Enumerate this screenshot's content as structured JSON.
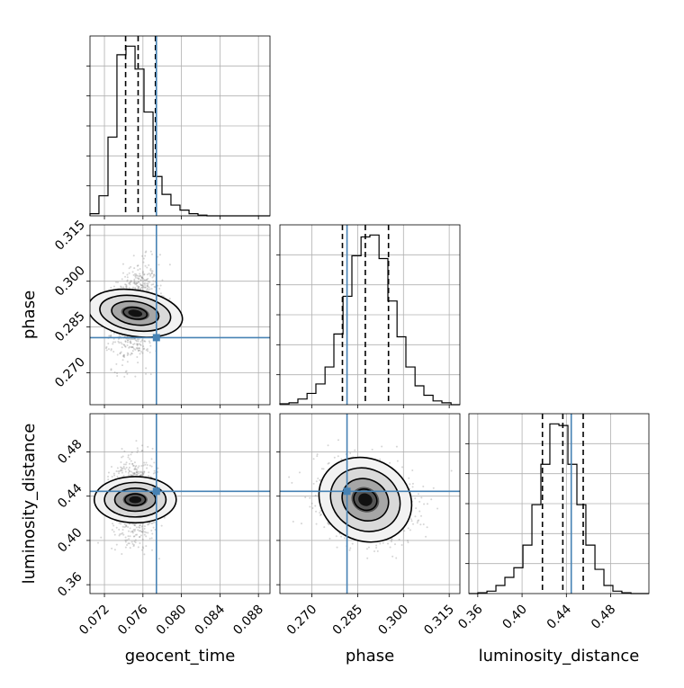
{
  "chart_data": {
    "type": "corner",
    "parameters": [
      "geocent_time",
      "phase",
      "luminosity_distance"
    ],
    "truth": {
      "geocent_time": 0.0774,
      "phase": 0.2815,
      "luminosity_distance": 0.4444
    },
    "grid": true,
    "panels": {
      "geocent_time": {
        "range": [
          0.0705,
          0.0892
        ],
        "ticks": [
          "0.072",
          "0.076",
          "0.080",
          "0.084",
          "0.088"
        ],
        "tick_values": [
          0.072,
          0.076,
          0.08,
          0.084,
          0.088
        ],
        "quantiles": [
          0.0742,
          0.0755,
          0.0773
        ],
        "histogram": {
          "bin_edges": [
            0.0705,
            0.07143,
            0.07237,
            0.0733,
            0.07424,
            0.07518,
            0.07611,
            0.07705,
            0.07798,
            0.07891,
            0.07985,
            0.08079,
            0.08172,
            0.08265,
            0.08359,
            0.08453,
            0.08546,
            0.0864,
            0.08733,
            0.08827,
            0.0892
          ],
          "counts": [
            3,
            28,
            110,
            225,
            237,
            205,
            145,
            55,
            30,
            15,
            8,
            3,
            1,
            0,
            0,
            0,
            0,
            0,
            0,
            0
          ]
        }
      },
      "phase": {
        "range": [
          0.2595,
          0.3185
        ],
        "ticks": [
          "0.270",
          "0.285",
          "0.300",
          "0.315"
        ],
        "tick_values": [
          0.27,
          0.285,
          0.3,
          0.315
        ],
        "quantiles": [
          0.28,
          0.2875,
          0.2951
        ],
        "histogram": {
          "bin_edges": [
            0.2595,
            0.2625,
            0.2654,
            0.2684,
            0.2713,
            0.2743,
            0.2772,
            0.2802,
            0.2831,
            0.2861,
            0.289,
            0.292,
            0.2949,
            0.2979,
            0.3008,
            0.3038,
            0.3067,
            0.3097,
            0.3126,
            0.3156,
            0.3185
          ],
          "counts": [
            1,
            2,
            6,
            12,
            22,
            40,
            75,
            115,
            158,
            178,
            180,
            155,
            110,
            72,
            40,
            20,
            10,
            4,
            2,
            0
          ]
        }
      },
      "luminosity_distance": {
        "range": [
          0.352,
          0.5145
        ],
        "ticks": [
          "0.36",
          "0.40",
          "0.44",
          "0.48"
        ],
        "tick_values": [
          0.36,
          0.4,
          0.44,
          0.48
        ],
        "quantiles": [
          0.4184,
          0.4368,
          0.4552
        ],
        "histogram": {
          "bin_edges": [
            0.352,
            0.3601,
            0.3683,
            0.3764,
            0.3845,
            0.3926,
            0.4008,
            0.4089,
            0.417,
            0.4251,
            0.4333,
            0.4414,
            0.4495,
            0.4576,
            0.4658,
            0.4739,
            0.482,
            0.4901,
            0.4983,
            0.5064,
            0.5145
          ],
          "counts": [
            0,
            1,
            3,
            10,
            20,
            32,
            60,
            110,
            160,
            210,
            208,
            160,
            110,
            60,
            30,
            10,
            3,
            1,
            0,
            0
          ]
        }
      }
    },
    "pairs": [
      {
        "x": "geocent_time",
        "y": "phase",
        "center": [
          0.0752,
          0.2895
        ],
        "sigma": [
          0.0012,
          0.0078
        ],
        "rho": 0.25,
        "levels_sigma": [
          0.5,
          1.0,
          1.5,
          2.0
        ]
      },
      {
        "x": "geocent_time",
        "y": "luminosity_distance",
        "center": [
          0.0752,
          0.4368
        ],
        "sigma": [
          0.0012,
          0.0185
        ],
        "rho": 0.0,
        "levels_sigma": [
          0.5,
          1.0,
          1.5,
          2.0
        ]
      },
      {
        "x": "phase",
        "y": "luminosity_distance",
        "center": [
          0.2875,
          0.4368
        ],
        "sigma": [
          0.0078,
          0.0185
        ],
        "rho": -0.2,
        "levels_sigma": [
          0.5,
          1.0,
          1.5,
          2.0
        ]
      }
    ]
  }
}
